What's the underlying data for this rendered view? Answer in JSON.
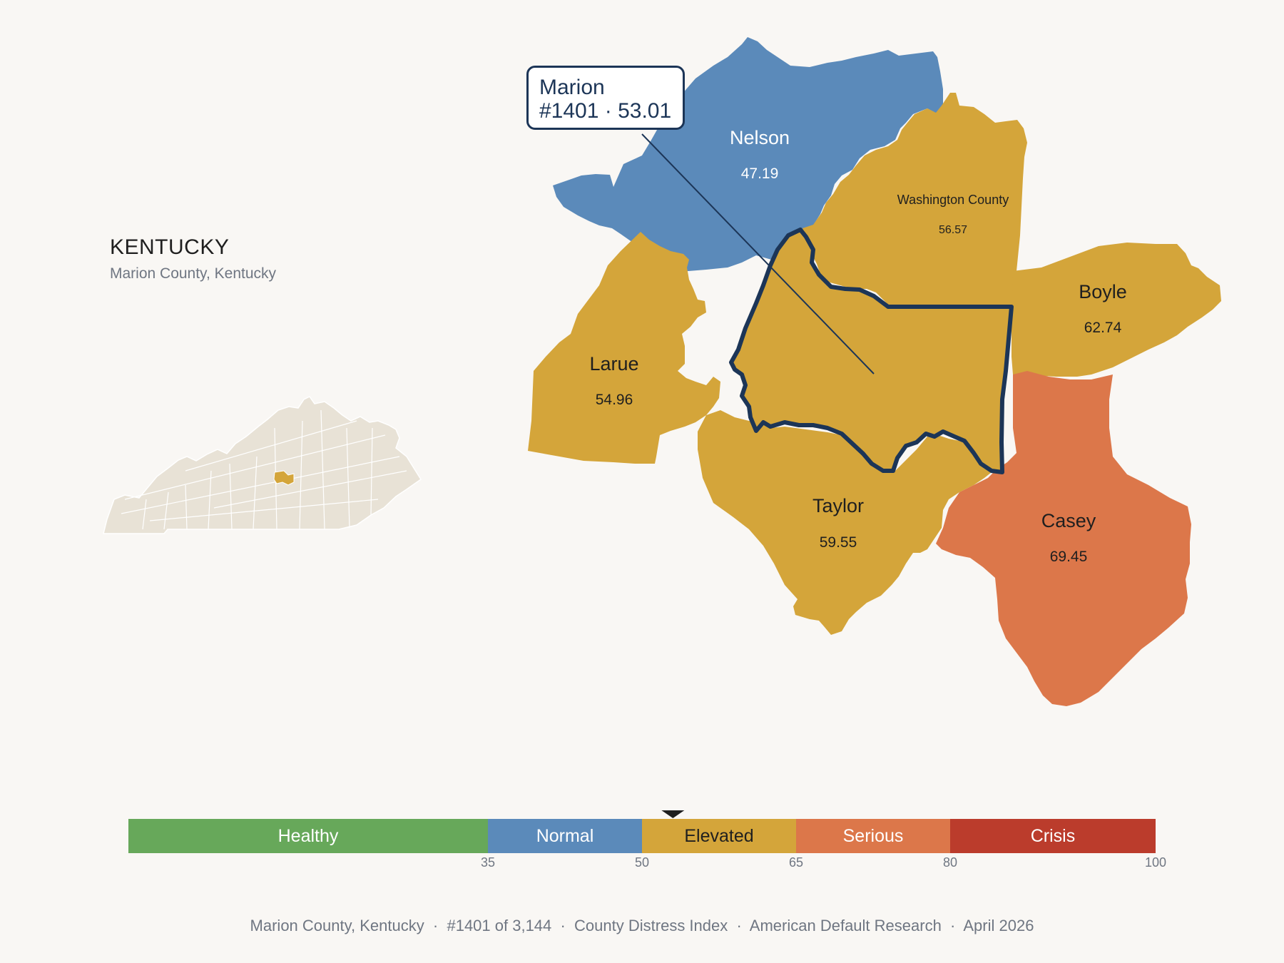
{
  "state": {
    "title": "KENTUCKY",
    "subtitle": "Marion County, Kentucky"
  },
  "callout": {
    "name": "Marion",
    "detail": "#1401 · 53.01"
  },
  "counties": [
    {
      "id": "nelson",
      "name": "Nelson",
      "value": "47.19",
      "color": "#5b8aba",
      "text_color": "#ffffff"
    },
    {
      "id": "washington",
      "name": "Washington County",
      "value": "56.57",
      "color": "#d4a53a",
      "text_color": "#1f1f1f"
    },
    {
      "id": "boyle",
      "name": "Boyle",
      "value": "62.74",
      "color": "#d4a53a",
      "text_color": "#1f1f1f"
    },
    {
      "id": "larue",
      "name": "Larue",
      "value": "54.96",
      "color": "#d4a53a",
      "text_color": "#1f1f1f"
    },
    {
      "id": "taylor",
      "name": "Taylor",
      "value": "59.55",
      "color": "#d4a53a",
      "text_color": "#1f1f1f"
    },
    {
      "id": "casey",
      "name": "Casey",
      "value": "69.45",
      "color": "#dc774a",
      "text_color": "#1f1f1f"
    }
  ],
  "highlight": {
    "name": "Marion",
    "value": 53.01,
    "fill": "#d4a53a",
    "outline": "#1c3557"
  },
  "scale": {
    "min": 0,
    "max": 100,
    "marker_value": 53.01,
    "segments": [
      {
        "label": "Healthy",
        "from": 0,
        "to": 35,
        "color": "#67a85a",
        "text_color": "#ffffff"
      },
      {
        "label": "Normal",
        "from": 35,
        "to": 50,
        "color": "#5b8aba",
        "text_color": "#ffffff"
      },
      {
        "label": "Elevated",
        "from": 50,
        "to": 65,
        "color": "#d4a53a",
        "text_color": "#1f1f1f"
      },
      {
        "label": "Serious",
        "from": 65,
        "to": 80,
        "color": "#dc774a",
        "text_color": "#ffffff"
      },
      {
        "label": "Crisis",
        "from": 80,
        "to": 100,
        "color": "#bb3c2c",
        "text_color": "#ffffff"
      }
    ],
    "ticks": [
      "35",
      "50",
      "65",
      "80",
      "100"
    ]
  },
  "inset": {
    "fill": "#e8e2d6",
    "highlight": "#d4a53a"
  },
  "footer": "Marion County, Kentucky  ·  #1401 of 3,144  ·  County Distress Index  ·  American Default Research  ·  April 2026"
}
